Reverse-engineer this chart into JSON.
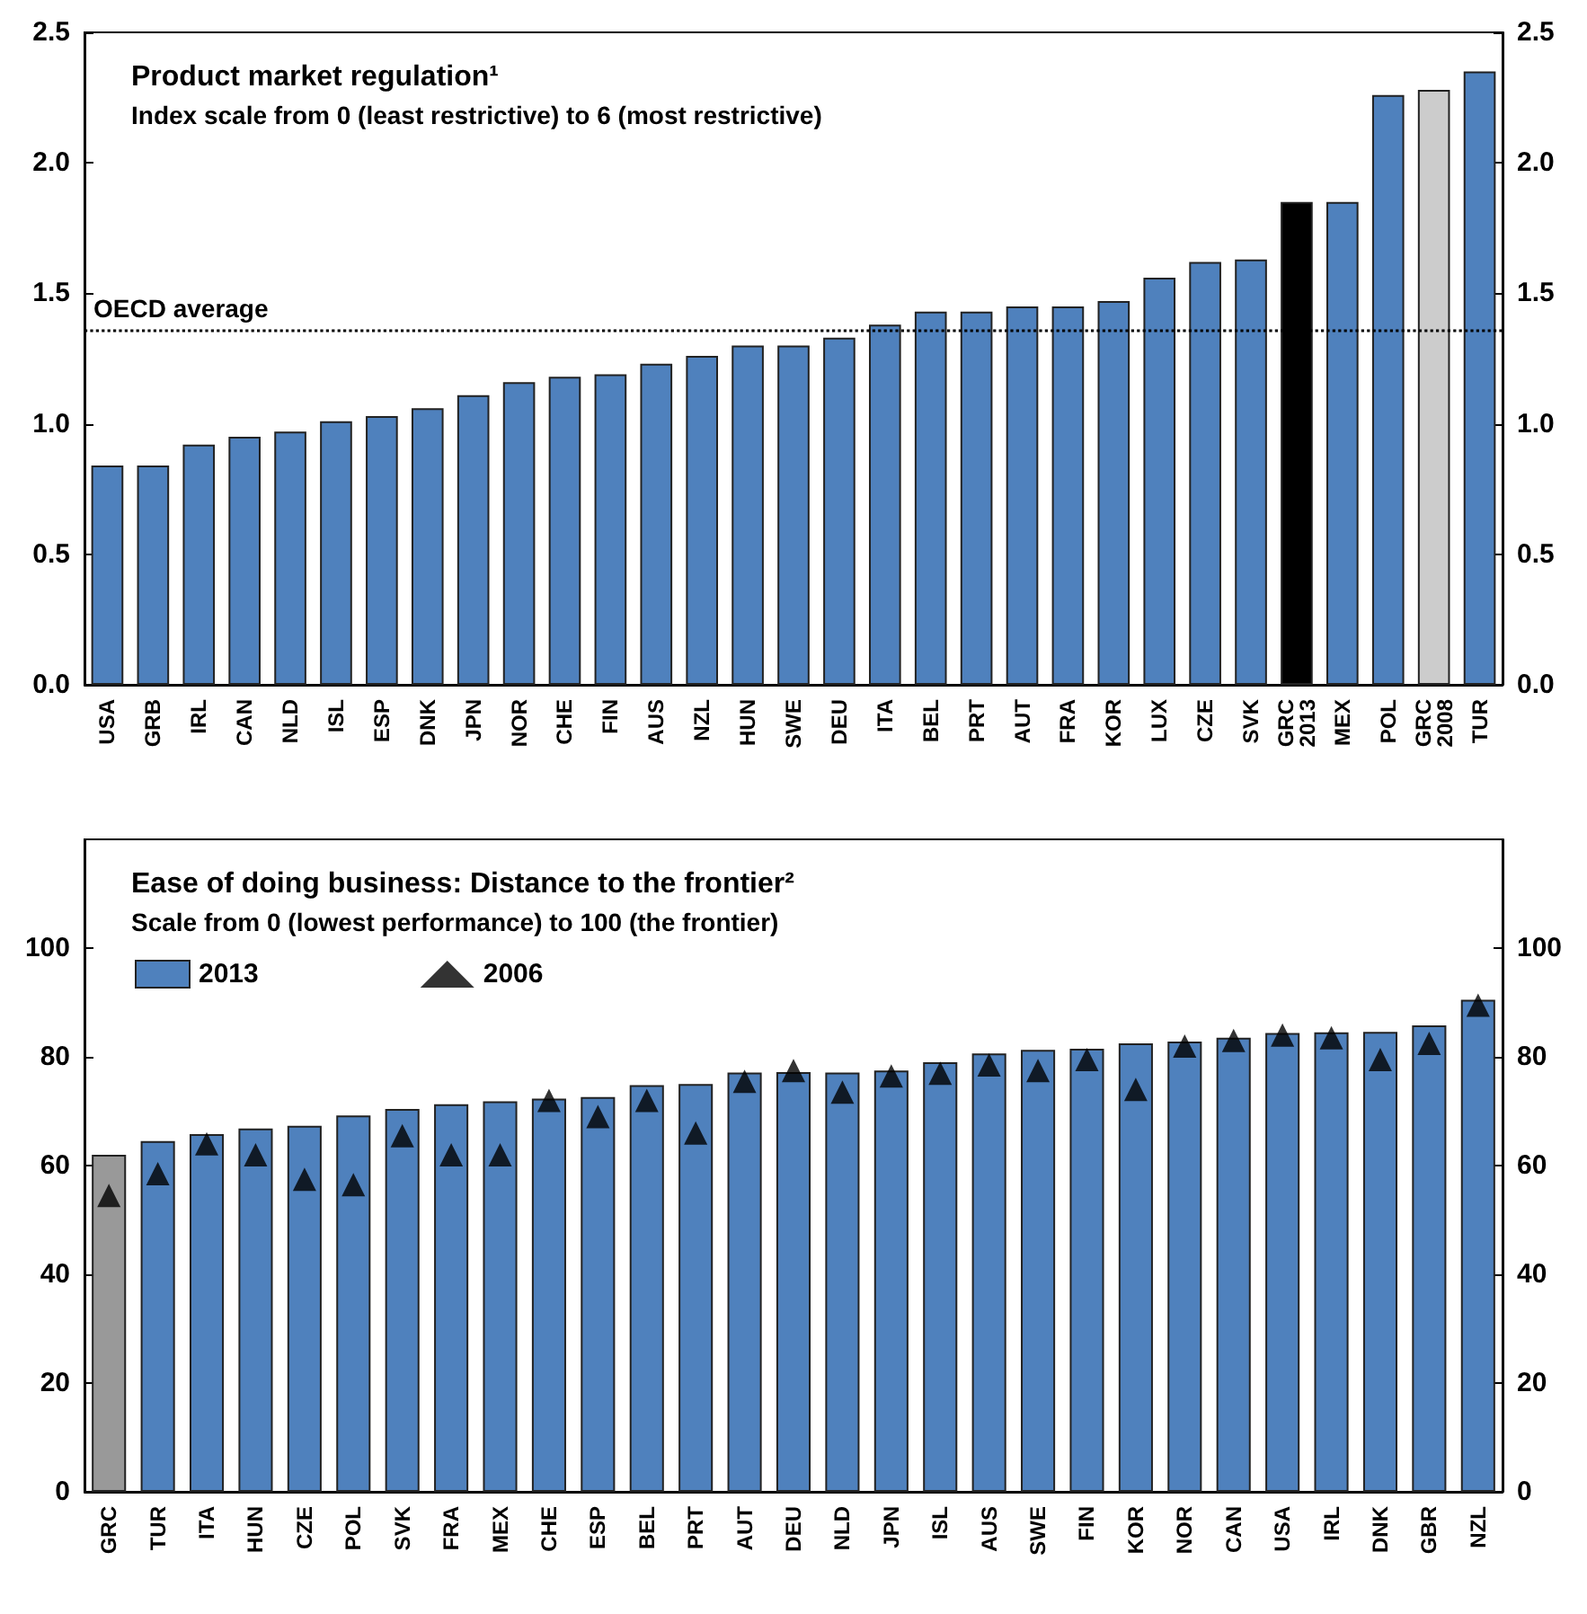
{
  "chart_data": [
    {
      "type": "bar",
      "title": "Product market regulation¹",
      "subtitle": "Index scale from 0 (least restrictive) to 6 (most restrictive)",
      "categories": [
        "USA",
        "GRB",
        "IRL",
        "CAN",
        "NLD",
        "ISL",
        "ESP",
        "DNK",
        "JPN",
        "NOR",
        "CHE",
        "FIN",
        "AUS",
        "NZL",
        "HUN",
        "SWE",
        "DEU",
        "ITA",
        "BEL",
        "PRT",
        "AUT",
        "FRA",
        "KOR",
        "LUX",
        "CZE",
        "SVK",
        "GRC\n2013",
        "MEX",
        "POL",
        "GRC\n2008",
        "TUR"
      ],
      "series": [
        {
          "color": "#4f81bd",
          "values": [
            0.84,
            0.84,
            0.92,
            0.95,
            0.97,
            1.01,
            1.03,
            1.06,
            1.11,
            1.16,
            1.18,
            1.19,
            1.23,
            1.26,
            1.3,
            1.3,
            1.33,
            1.38,
            1.43,
            1.43,
            1.45,
            1.45,
            1.47,
            1.56,
            1.62,
            1.63,
            1.85,
            1.85,
            2.26,
            2.28,
            2.35
          ],
          "colors": [
            "#4f81bd",
            "#4f81bd",
            "#4f81bd",
            "#4f81bd",
            "#4f81bd",
            "#4f81bd",
            "#4f81bd",
            "#4f81bd",
            "#4f81bd",
            "#4f81bd",
            "#4f81bd",
            "#4f81bd",
            "#4f81bd",
            "#4f81bd",
            "#4f81bd",
            "#4f81bd",
            "#4f81bd",
            "#4f81bd",
            "#4f81bd",
            "#4f81bd",
            "#4f81bd",
            "#4f81bd",
            "#4f81bd",
            "#4f81bd",
            "#4f81bd",
            "#4f81bd",
            "#000000",
            "#4f81bd",
            "#4f81bd",
            "#cccccc",
            "#4f81bd"
          ]
        }
      ],
      "ylim": [
        0,
        2.5
      ],
      "yticks": [
        {
          "value": 0,
          "label": "0.0"
        },
        {
          "value": 0.5,
          "label": "0.5"
        },
        {
          "value": 1,
          "label": "1.0"
        },
        {
          "value": 1.5,
          "label": "1.5"
        },
        {
          "value": 2,
          "label": "2.0"
        },
        {
          "value": 2.5,
          "label": "2.5"
        }
      ],
      "y2lim": [
        0,
        2.5
      ],
      "y2ticks": [
        {
          "value": 0,
          "label": "0.0"
        },
        {
          "value": 0.5,
          "label": "0.5"
        },
        {
          "value": 1,
          "label": "1.0"
        },
        {
          "value": 1.5,
          "label": "1.5"
        },
        {
          "value": 2,
          "label": "2.0"
        },
        {
          "value": 2.5,
          "label": "2.5"
        }
      ],
      "ref_lines": [
        {
          "axis": "y",
          "value": 1.36,
          "label": "OECD average",
          "color": "#000000",
          "line_style": "dotted"
        }
      ],
      "grid": false,
      "legend": false
    },
    {
      "type": "bar",
      "title": "Ease of doing business: Distance to the frontier²",
      "subtitle": "Scale from 0 (lowest performance) to 100 (the frontier)",
      "categories": [
        "GRC",
        "TUR",
        "ITA",
        "HUN",
        "CZE",
        "POL",
        "SVK",
        "FRA",
        "MEX",
        "CHE",
        "ESP",
        "BEL",
        "PRT",
        "AUT",
        "DEU",
        "NLD",
        "JPN",
        "ISL",
        "AUS",
        "SWE",
        "FIN",
        "KOR",
        "NOR",
        "CAN",
        "USA",
        "IRL",
        "DNK",
        "GBR",
        "NZL"
      ],
      "series": [
        {
          "name": "2013",
          "color": "#4f81bd",
          "values": [
            62,
            64.5,
            65.8,
            66.8,
            67.3,
            69.2,
            70.4,
            71.3,
            71.8,
            72.3,
            72.6,
            74.8,
            75,
            77.1,
            77.2,
            77.1,
            77.5,
            79,
            80.6,
            81.3,
            81.5,
            82.5,
            82.8,
            83.5,
            84.4,
            84.5,
            84.6,
            85.8,
            90.5
          ],
          "colors": [
            "#999999",
            "#4f81bd",
            "#4f81bd",
            "#4f81bd",
            "#4f81bd",
            "#4f81bd",
            "#4f81bd",
            "#4f81bd",
            "#4f81bd",
            "#4f81bd",
            "#4f81bd",
            "#4f81bd",
            "#4f81bd",
            "#4f81bd",
            "#4f81bd",
            "#4f81bd",
            "#4f81bd",
            "#4f81bd",
            "#4f81bd",
            "#4f81bd",
            "#4f81bd",
            "#4f81bd",
            "#4f81bd",
            "#4f81bd",
            "#4f81bd",
            "#4f81bd",
            "#4f81bd",
            "#4f81bd",
            "#4f81bd"
          ]
        },
        {
          "name": "2006",
          "type": "scatter",
          "marker": "triangle",
          "color": "#000000",
          "values": [
            54.5,
            58.5,
            64,
            62,
            57.5,
            56.5,
            65.5,
            62,
            62,
            72,
            69,
            72,
            66,
            75.5,
            77.5,
            73.5,
            76.5,
            77,
            78.5,
            77.5,
            79.5,
            74,
            82,
            83,
            84,
            83.5,
            79.5,
            82.5,
            89.5
          ]
        }
      ],
      "ylim": [
        0,
        120
      ],
      "yticks": [
        0,
        20,
        40,
        60,
        80,
        100
      ],
      "y2lim": [
        0,
        120
      ],
      "y2ticks": [
        0,
        20,
        40,
        60,
        80,
        100
      ],
      "grid": false,
      "legend": "top left"
    }
  ]
}
